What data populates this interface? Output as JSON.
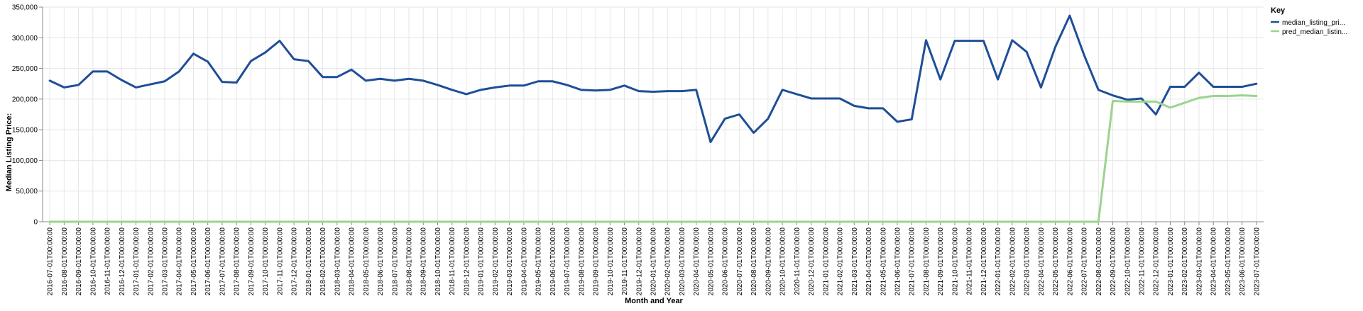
{
  "colors": {
    "series_1": "#1f4e98",
    "series_2": "#9bd48f"
  },
  "chart_data": {
    "type": "line",
    "xlabel": "Month and Year",
    "ylabel": "Median Listing Price:",
    "ylim": [
      0,
      350000
    ],
    "y_ticks": [
      "0",
      "50,000",
      "100,000",
      "150,000",
      "200,000",
      "250,000",
      "300,000",
      "350,000"
    ],
    "grid": true,
    "legend_position": "top-right",
    "legend_title": "Key",
    "x": [
      "2016-07-01T00:00:00",
      "2016-08-01T00:00:00",
      "2016-09-01T00:00:00",
      "2016-10-01T00:00:00",
      "2016-11-01T00:00:00",
      "2016-12-01T00:00:00",
      "2017-01-01T00:00:00",
      "2017-02-01T00:00:00",
      "2017-03-01T00:00:00",
      "2017-04-01T00:00:00",
      "2017-05-01T00:00:00",
      "2017-06-01T00:00:00",
      "2017-07-01T00:00:00",
      "2017-08-01T00:00:00",
      "2017-09-01T00:00:00",
      "2017-10-01T00:00:00",
      "2017-11-01T00:00:00",
      "2017-12-01T00:00:00",
      "2018-01-01T00:00:00",
      "2018-02-01T00:00:00",
      "2018-03-01T00:00:00",
      "2018-04-01T00:00:00",
      "2018-05-01T00:00:00",
      "2018-06-01T00:00:00",
      "2018-07-01T00:00:00",
      "2018-08-01T00:00:00",
      "2018-09-01T00:00:00",
      "2018-10-01T00:00:00",
      "2018-11-01T00:00:00",
      "2018-12-01T00:00:00",
      "2019-01-01T00:00:00",
      "2019-02-01T00:00:00",
      "2019-03-01T00:00:00",
      "2019-04-01T00:00:00",
      "2019-05-01T00:00:00",
      "2019-06-01T00:00:00",
      "2019-07-01T00:00:00",
      "2019-08-01T00:00:00",
      "2019-09-01T00:00:00",
      "2019-10-01T00:00:00",
      "2019-11-01T00:00:00",
      "2019-12-01T00:00:00",
      "2020-01-01T00:00:00",
      "2020-02-01T00:00:00",
      "2020-03-01T00:00:00",
      "2020-04-01T00:00:00",
      "2020-05-01T00:00:00",
      "2020-06-01T00:00:00",
      "2020-07-01T00:00:00",
      "2020-08-01T00:00:00",
      "2020-09-01T00:00:00",
      "2020-10-01T00:00:00",
      "2020-11-01T00:00:00",
      "2020-12-01T00:00:00",
      "2021-01-01T00:00:00",
      "2021-02-01T00:00:00",
      "2021-03-01T00:00:00",
      "2021-04-01T00:00:00",
      "2021-05-01T00:00:00",
      "2021-06-01T00:00:00",
      "2021-07-01T00:00:00",
      "2021-08-01T00:00:00",
      "2021-09-01T00:00:00",
      "2021-10-01T00:00:00",
      "2021-11-01T00:00:00",
      "2021-12-01T00:00:00",
      "2022-01-01T00:00:00",
      "2022-02-01T00:00:00",
      "2022-03-01T00:00:00",
      "2022-04-01T00:00:00",
      "2022-05-01T00:00:00",
      "2022-06-01T00:00:00",
      "2022-07-01T00:00:00",
      "2022-08-01T00:00:00",
      "2022-09-01T00:00:00",
      "2022-10-01T00:00:00",
      "2022-11-01T00:00:00",
      "2022-12-01T00:00:00",
      "2023-01-01T00:00:00",
      "2023-02-01T00:00:00",
      "2023-03-01T00:00:00",
      "2023-04-01T00:00:00",
      "2023-05-01T00:00:00",
      "2023-06-01T00:00:00",
      "2023-07-01T00:00:00"
    ],
    "series": [
      {
        "name": "median_listing_pri...",
        "values": [
          230000,
          219000,
          223000,
          245000,
          245000,
          231000,
          219000,
          224000,
          229000,
          245000,
          274000,
          261000,
          228000,
          227000,
          262000,
          276000,
          295000,
          265000,
          262000,
          236000,
          236000,
          248000,
          230000,
          233000,
          230000,
          233000,
          230000,
          223000,
          215000,
          208000,
          215000,
          219000,
          222000,
          222000,
          229000,
          229000,
          223000,
          215000,
          214000,
          215000,
          222000,
          213000,
          212000,
          213000,
          213000,
          215000,
          130000,
          168000,
          175000,
          145000,
          168000,
          215000,
          208000,
          201000,
          201000,
          201000,
          189000,
          185000,
          185000,
          163000,
          167000,
          296000,
          232000,
          295000,
          295000,
          295000,
          232000,
          296000,
          277000,
          219000,
          285000,
          336000,
          272000,
          215000,
          206000,
          199000,
          201000,
          175000,
          220000,
          220000,
          243000,
          220000,
          220000,
          220000,
          225000
        ]
      },
      {
        "name": "pred_median_listin...",
        "values": [
          0,
          0,
          0,
          0,
          0,
          0,
          0,
          0,
          0,
          0,
          0,
          0,
          0,
          0,
          0,
          0,
          0,
          0,
          0,
          0,
          0,
          0,
          0,
          0,
          0,
          0,
          0,
          0,
          0,
          0,
          0,
          0,
          0,
          0,
          0,
          0,
          0,
          0,
          0,
          0,
          0,
          0,
          0,
          0,
          0,
          0,
          0,
          0,
          0,
          0,
          0,
          0,
          0,
          0,
          0,
          0,
          0,
          0,
          0,
          0,
          0,
          0,
          0,
          0,
          0,
          0,
          0,
          0,
          0,
          0,
          0,
          0,
          0,
          0,
          197000,
          196000,
          196000,
          196000,
          186000,
          194000,
          202000,
          205000,
          205000,
          206000,
          205000
        ]
      }
    ]
  }
}
